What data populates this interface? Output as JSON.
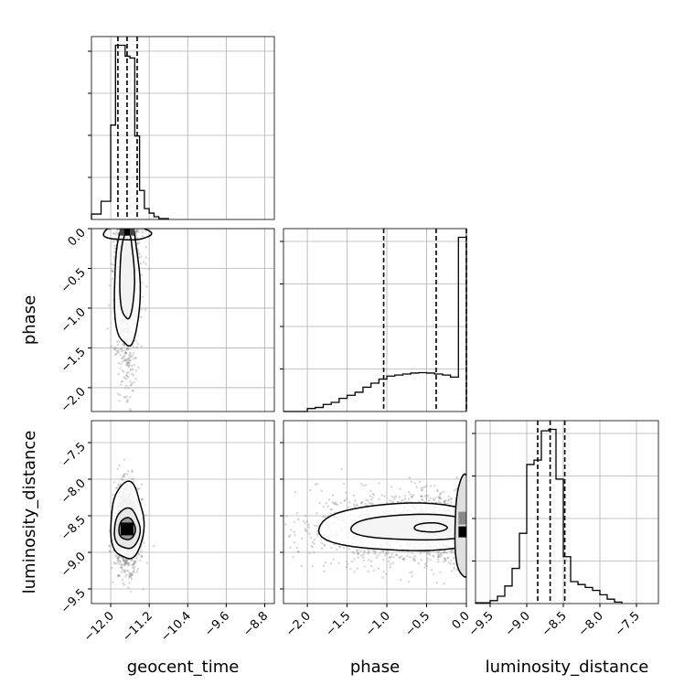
{
  "chart_data": {
    "type": "corner",
    "parameters": [
      {
        "label": "geocent_time",
        "range": [
          -12.4,
          -8.6
        ],
        "ticks": [
          -12.0,
          -11.2,
          -10.4,
          -9.6,
          -8.8
        ],
        "tick_labels": [
          "−12.0",
          "−11.2",
          "−10.4",
          "−9.6",
          "−8.8"
        ],
        "quantiles": [
          -11.85,
          -11.66,
          -11.45
        ]
      },
      {
        "label": "phase",
        "range": [
          -2.3,
          0.0
        ],
        "ticks": [
          -2.0,
          -1.5,
          -1.0,
          -0.5,
          0.0
        ],
        "tick_labels": [
          "−2.0",
          "−1.5",
          "−1.0",
          "−0.5",
          "0.0"
        ],
        "quantiles": [
          -1.04,
          -0.38,
          0.0
        ]
      },
      {
        "label": "luminosity_distance",
        "range": [
          -9.7,
          -7.2
        ],
        "ticks": [
          -9.5,
          -9.0,
          -8.5,
          -8.0,
          -7.5
        ],
        "tick_labels": [
          "−9.5",
          "−9.0",
          "−8.5",
          "−8.0",
          "−7.5"
        ],
        "quantiles": [
          -8.85,
          -8.68,
          -8.48
        ]
      }
    ],
    "histograms": [
      {
        "param": "geocent_time",
        "bin_edges": [
          -12.4,
          -12.2,
          -12.0,
          -11.9,
          -11.8,
          -11.7,
          -11.6,
          -11.5,
          -11.4,
          -11.3,
          -11.2,
          -11.1,
          -11.0,
          -10.8
        ],
        "counts": [
          0.3,
          1.0,
          5.2,
          9.6,
          9.6,
          9.0,
          8.9,
          4.6,
          1.6,
          0.6,
          0.35,
          0.15,
          0.05
        ]
      },
      {
        "param": "phase",
        "bin_edges": [
          -2.3,
          -2.0,
          -1.9,
          -1.8,
          -1.7,
          -1.6,
          -1.5,
          -1.4,
          -1.3,
          -1.2,
          -1.1,
          -1.0,
          -0.9,
          -0.8,
          -0.7,
          -0.6,
          -0.5,
          -0.4,
          -0.3,
          -0.2,
          -0.1,
          0.0
        ],
        "counts": [
          0.0,
          0.15,
          0.2,
          0.35,
          0.45,
          0.65,
          0.8,
          0.95,
          1.2,
          1.4,
          1.6,
          1.75,
          1.8,
          1.85,
          1.9,
          1.92,
          1.9,
          1.85,
          1.8,
          1.7,
          8.6
        ]
      },
      {
        "param": "luminosity_distance",
        "bin_edges": [
          -9.7,
          -9.5,
          -9.4,
          -9.3,
          -9.2,
          -9.1,
          -9.0,
          -8.9,
          -8.8,
          -8.7,
          -8.6,
          -8.5,
          -8.4,
          -8.3,
          -8.2,
          -8.1,
          -8.0,
          -7.9,
          -7.8,
          -7.7
        ],
        "counts": [
          0.05,
          0.2,
          0.5,
          1.2,
          2.4,
          4.8,
          9.5,
          9.8,
          11.8,
          11.9,
          8.5,
          3.2,
          1.5,
          1.3,
          1.1,
          0.9,
          0.6,
          0.3,
          0.1
        ]
      }
    ],
    "pairs": [
      {
        "x": "geocent_time",
        "y": "phase",
        "mean": [
          -11.66,
          -0.8
        ],
        "spread": [
          0.12,
          0.55
        ],
        "mode": [
          -11.66,
          -0.03
        ],
        "points": 1500
      },
      {
        "x": "geocent_time",
        "y": "luminosity_distance",
        "mean": [
          -11.66,
          -8.66
        ],
        "spread": [
          0.13,
          0.28
        ],
        "mode": [
          -11.66,
          -8.68
        ],
        "points": 1500
      },
      {
        "x": "phase",
        "y": "luminosity_distance",
        "mean": [
          -0.7,
          -8.66
        ],
        "spread": [
          0.55,
          0.25
        ],
        "mode": [
          -0.03,
          -8.68
        ],
        "points": 1500
      }
    ],
    "grid": true,
    "xlabel_row": [
      "geocent_time",
      "phase",
      "luminosity_distance"
    ],
    "ylabel_col": [
      "phase",
      "luminosity_distance"
    ],
    "colors": {
      "hist": "#000000",
      "quantile_line": "#000000",
      "scatter": "#888888",
      "grid": "#b0b0b0"
    }
  }
}
